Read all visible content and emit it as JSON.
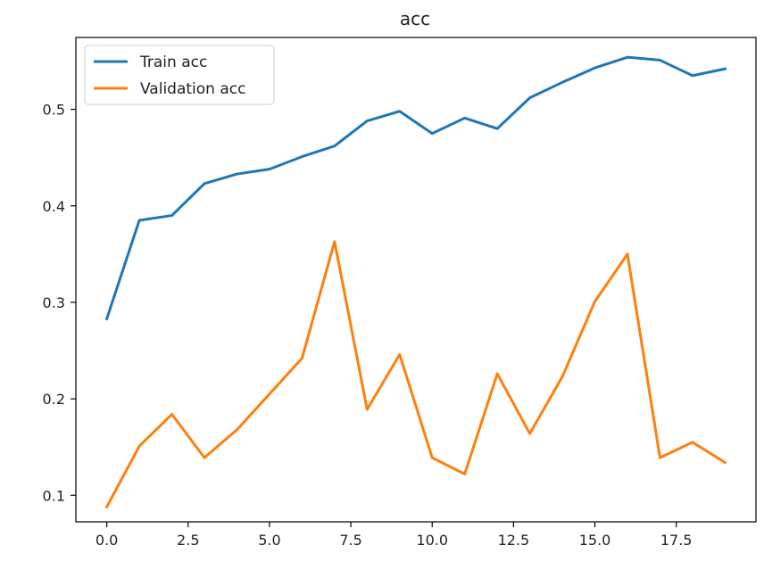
{
  "chart_data": {
    "type": "line",
    "title": "acc",
    "xlabel": "",
    "ylabel": "",
    "xlim": [
      -0.95,
      19.95
    ],
    "ylim": [
      0.0725,
      0.5745
    ],
    "grid": false,
    "legend_position": "top-left",
    "x_ticks": [
      0.0,
      2.5,
      5.0,
      7.5,
      10.0,
      12.5,
      15.0,
      17.5
    ],
    "x_tick_labels": [
      "0.0",
      "2.5",
      "5.0",
      "7.5",
      "10.0",
      "12.5",
      "15.0",
      "17.5"
    ],
    "y_ticks": [
      0.1,
      0.2,
      0.3,
      0.4,
      0.5
    ],
    "y_tick_labels": [
      "0.1",
      "0.2",
      "0.3",
      "0.4",
      "0.5"
    ],
    "x": [
      0,
      1,
      2,
      3,
      4,
      5,
      6,
      7,
      8,
      9,
      10,
      11,
      12,
      13,
      14,
      15,
      16,
      17,
      18,
      19
    ],
    "series": [
      {
        "name": "Train acc",
        "color": "#1f77b4",
        "values": [
          0.283,
          0.385,
          0.39,
          0.423,
          0.433,
          0.438,
          0.451,
          0.462,
          0.488,
          0.498,
          0.475,
          0.491,
          0.48,
          0.512,
          0.528,
          0.543,
          0.554,
          0.551,
          0.535,
          0.542
        ]
      },
      {
        "name": "Validation acc",
        "color": "#ff7f0e",
        "values": [
          0.088,
          0.151,
          0.184,
          0.139,
          0.168,
          0.205,
          0.242,
          0.363,
          0.189,
          0.246,
          0.139,
          0.122,
          0.226,
          0.164,
          0.223,
          0.301,
          0.35,
          0.139,
          0.155,
          0.134
        ]
      }
    ]
  }
}
